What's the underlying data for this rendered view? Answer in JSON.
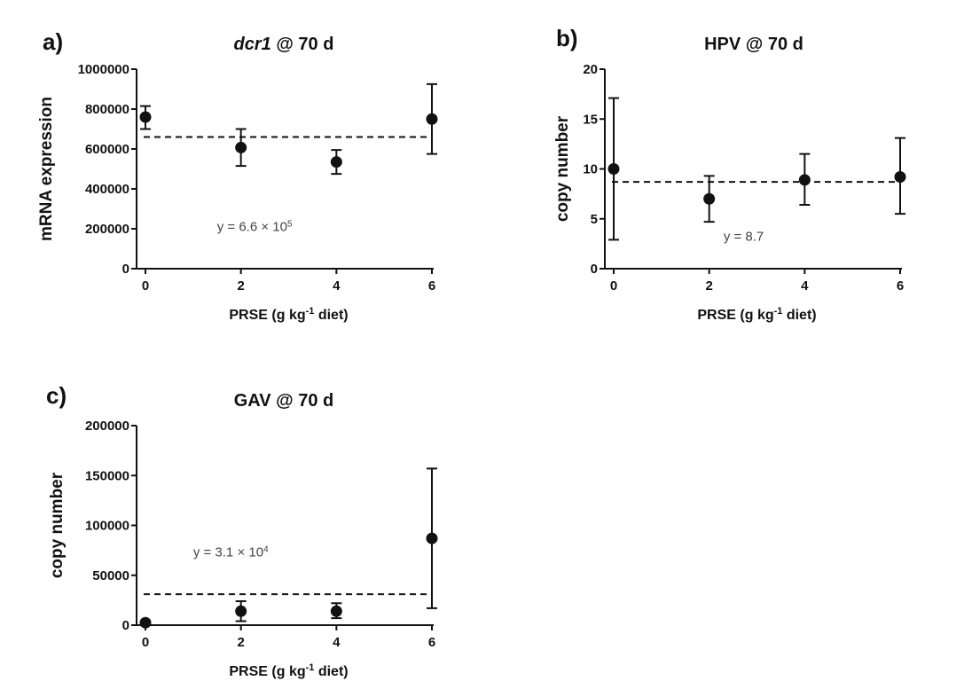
{
  "chart_data": [
    {
      "panel": "a)",
      "type": "scatter",
      "title_italic": "dcr1",
      "title_rest": " @ 70 d",
      "xlabel": "PRSE (g kg-1 diet)",
      "xlabel_parts": [
        "PRSE (g kg",
        "-1",
        " diet)"
      ],
      "ylabel": "mRNA expression",
      "xlim": [
        0,
        6
      ],
      "ylim": [
        0,
        1000000
      ],
      "xticks": [
        0,
        2,
        4,
        6
      ],
      "yticks": [
        0,
        200000,
        400000,
        600000,
        800000,
        1000000
      ],
      "ytick_labels": [
        "0",
        "200000",
        "400000",
        "600000",
        "800000",
        "1000000"
      ],
      "x": [
        0,
        2,
        4,
        6
      ],
      "y": [
        760000,
        607000,
        535000,
        750000
      ],
      "err_low": [
        700000,
        515000,
        475000,
        575000
      ],
      "err_high": [
        815000,
        700000,
        595000,
        925000
      ],
      "mean_line": 660000,
      "annotation": {
        "prefix": "y = 6.6 × 10",
        "sup": "5",
        "x": 1.5,
        "y": 190000
      }
    },
    {
      "panel": "b)",
      "type": "scatter",
      "title_italic": "",
      "title_rest": "HPV @ 70 d",
      "xlabel": "PRSE (g kg-1 diet)",
      "xlabel_parts": [
        "PRSE (g kg",
        "-1",
        " diet)"
      ],
      "ylabel": "copy number",
      "xlim": [
        0,
        6
      ],
      "ylim": [
        0,
        20
      ],
      "xticks": [
        0,
        2,
        4,
        6
      ],
      "yticks": [
        0,
        5,
        10,
        15,
        20
      ],
      "ytick_labels": [
        "0",
        "5",
        "10",
        "15",
        "20"
      ],
      "x": [
        0,
        2,
        4,
        6
      ],
      "y": [
        10,
        7,
        8.9,
        9.2
      ],
      "err_low": [
        2.9,
        4.7,
        6.4,
        5.5
      ],
      "err_high": [
        17.1,
        9.3,
        11.5,
        13.1
      ],
      "mean_line": 8.7,
      "annotation": {
        "prefix": "y = 8.7",
        "sup": "",
        "x": 2.3,
        "y": 2.8
      }
    },
    {
      "panel": "c)",
      "type": "scatter",
      "title_italic": "",
      "title_rest": "GAV @ 70 d",
      "xlabel": "PRSE (g kg-1 diet)",
      "xlabel_parts": [
        "PRSE (g kg",
        "-1",
        " diet)"
      ],
      "ylabel": "copy number",
      "xlim": [
        0,
        6
      ],
      "ylim": [
        0,
        200000
      ],
      "xticks": [
        0,
        2,
        4,
        6
      ],
      "yticks": [
        0,
        50000,
        100000,
        150000,
        200000
      ],
      "ytick_labels": [
        "0",
        "50000",
        "100000",
        "150000",
        "200000"
      ],
      "x": [
        0,
        2,
        4,
        6
      ],
      "y": [
        2500,
        14000,
        14000,
        87000
      ],
      "err_low": [
        500,
        4000,
        7000,
        17000
      ],
      "err_high": [
        4500,
        24000,
        22000,
        157000
      ],
      "mean_line": 31000,
      "annotation": {
        "prefix": "y = 3.1 × 10",
        "sup": "4",
        "x": 1.0,
        "y": 69000
      }
    }
  ]
}
